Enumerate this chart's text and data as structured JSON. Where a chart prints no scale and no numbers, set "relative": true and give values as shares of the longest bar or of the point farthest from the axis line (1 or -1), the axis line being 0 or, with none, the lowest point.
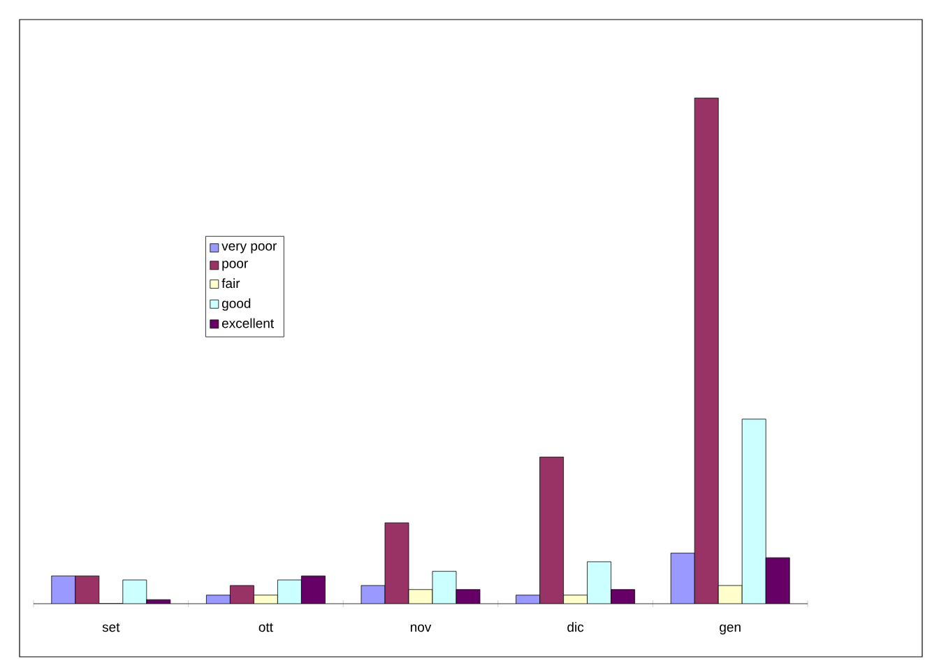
{
  "chart_data": {
    "type": "bar",
    "relative": true,
    "legend": "left",
    "categories": [
      "set",
      "ott",
      "nov",
      "dic",
      "gen"
    ],
    "series": [
      {
        "name": "very poor",
        "color": "#9999ff",
        "values": [
          0.055,
          0.017,
          0.036,
          0.017,
          0.1
        ]
      },
      {
        "name": "poor",
        "color": "#993366",
        "values": [
          0.055,
          0.036,
          0.16,
          0.29,
          1
        ]
      },
      {
        "name": "fair",
        "color": "#ffffcc",
        "values": [
          0,
          0.017,
          0.028,
          0.017,
          0.036
        ]
      },
      {
        "name": "good",
        "color": "#ccffff",
        "values": [
          0.047,
          0.047,
          0.064,
          0.083,
          0.365
        ]
      },
      {
        "name": "excellent",
        "color": "#660066",
        "values": [
          0.008,
          0.055,
          0.028,
          0.028,
          0.091
        ]
      }
    ]
  }
}
